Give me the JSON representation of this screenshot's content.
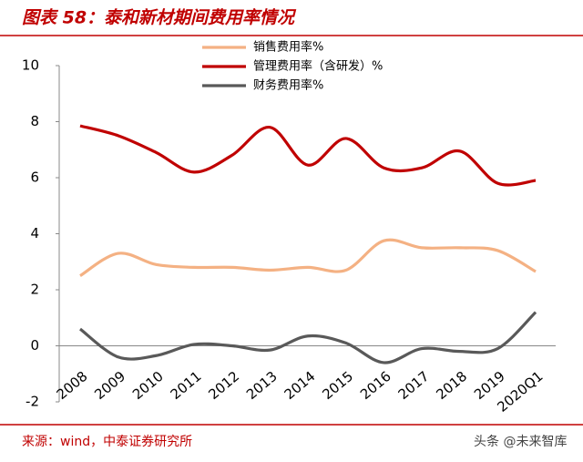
{
  "chart_data": {
    "type": "line",
    "title": "图表 58：泰和新材期间费用率情况",
    "categories": [
      "2008",
      "2009",
      "2010",
      "2011",
      "2012",
      "2013",
      "2014",
      "2015",
      "2016",
      "2017",
      "2018",
      "2019",
      "2020Q1"
    ],
    "series": [
      {
        "name": "销售费用率%",
        "color": "#f4b183",
        "values": [
          2.5,
          3.3,
          2.9,
          2.8,
          2.8,
          2.7,
          2.8,
          2.7,
          3.75,
          3.5,
          3.5,
          3.4,
          2.65
        ]
      },
      {
        "name": "管理费用率（含研发）%",
        "color": "#c00000",
        "values": [
          7.85,
          7.5,
          6.9,
          6.2,
          6.8,
          7.8,
          6.45,
          7.4,
          6.35,
          6.35,
          6.95,
          5.8,
          5.9
        ]
      },
      {
        "name": "财务费用率%",
        "color": "#595959",
        "values": [
          0.6,
          -0.4,
          -0.35,
          0.05,
          0.0,
          -0.15,
          0.35,
          0.1,
          -0.6,
          -0.1,
          -0.2,
          -0.1,
          1.2
        ]
      }
    ],
    "ylim": [
      -2,
      10
    ],
    "yticks": [
      -2,
      0,
      2,
      4,
      6,
      8,
      10
    ],
    "grid": false,
    "source": "来源：wind，中泰证券研究所",
    "watermark": "头条 @未来智库"
  }
}
